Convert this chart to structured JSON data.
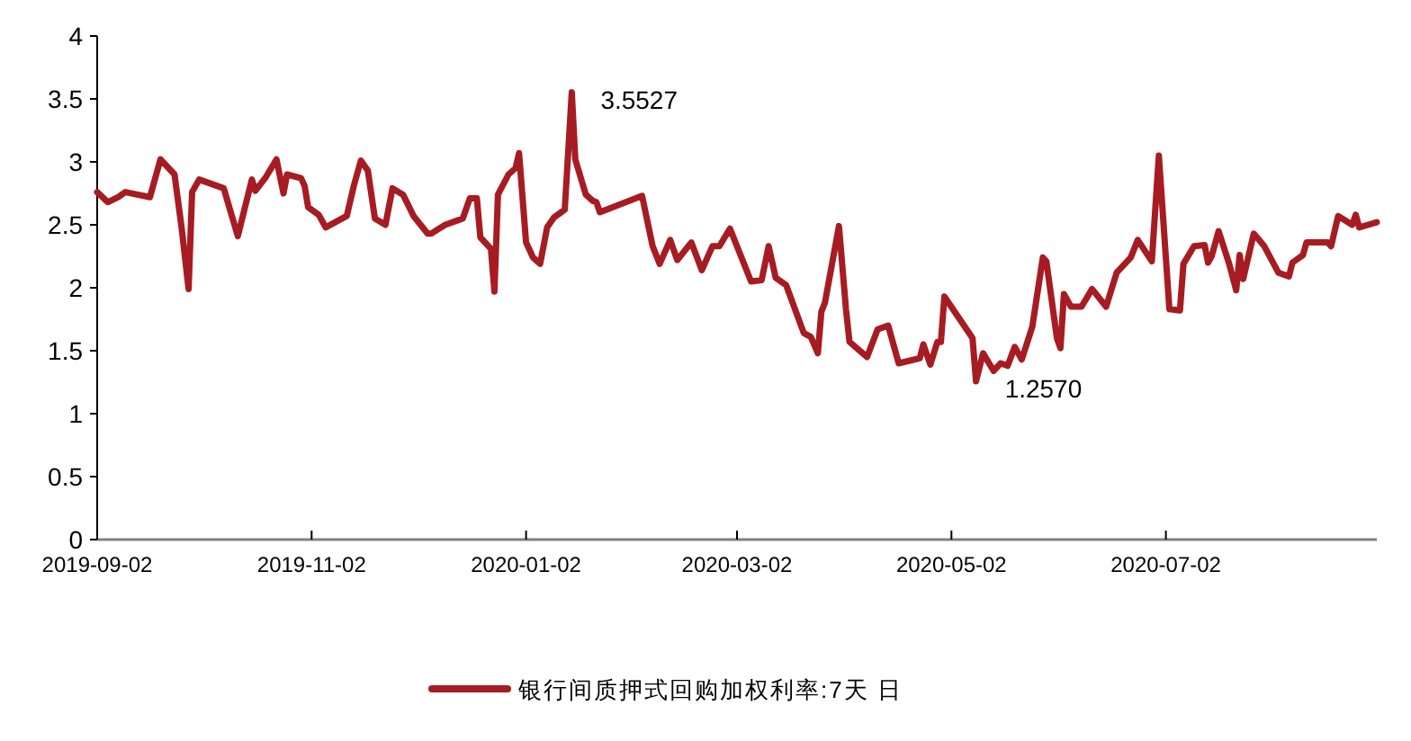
{
  "chart_data": {
    "type": "line",
    "xlim": [
      "2019-09-02",
      "2020-08-31"
    ],
    "xticks": [
      "2019-09-02",
      "2019-11-02",
      "2020-01-02",
      "2020-03-02",
      "2020-05-02",
      "2020-07-02"
    ],
    "ylim": [
      0,
      4
    ],
    "yticks": [
      0,
      0.5,
      1,
      1.5,
      2,
      2.5,
      3,
      3.5,
      4
    ],
    "legend": "bottom",
    "annotations": [
      {
        "text": "3.5527",
        "x": "2020-01-15",
        "y": 3.5527
      },
      {
        "text": "1.2570",
        "x": "2020-05-09",
        "y": 1.257
      }
    ],
    "series": [
      {
        "name": "银行间质押式回购加权利率:7天 日",
        "color": "#a61c22",
        "x": [
          "2019-09-02",
          "2019-09-05",
          "2019-09-08",
          "2019-09-10",
          "2019-09-17",
          "2019-09-20",
          "2019-09-24",
          "2019-09-26",
          "2019-09-28",
          "2019-09-29",
          "2019-10-01",
          "2019-10-08",
          "2019-10-12",
          "2019-10-16",
          "2019-10-17",
          "2019-10-20",
          "2019-10-23",
          "2019-10-25",
          "2019-10-26",
          "2019-10-30",
          "2019-10-31",
          "2019-11-01",
          "2019-11-04",
          "2019-11-06",
          "2019-11-12",
          "2019-11-14",
          "2019-11-16",
          "2019-11-18",
          "2019-11-20",
          "2019-11-23",
          "2019-11-25",
          "2019-11-28",
          "2019-12-01",
          "2019-12-05",
          "2019-12-06",
          "2019-12-10",
          "2019-12-15",
          "2019-12-17",
          "2019-12-19",
          "2019-12-20",
          "2019-12-23",
          "2019-12-24",
          "2019-12-25",
          "2019-12-28",
          "2019-12-30",
          "2019-12-31",
          "2020-01-02",
          "2020-01-04",
          "2020-01-06",
          "2020-01-08",
          "2020-01-10",
          "2020-01-13",
          "2020-01-15",
          "2020-01-16",
          "2020-01-19",
          "2020-01-21",
          "2020-01-22",
          "2020-01-23",
          "2020-02-04",
          "2020-02-07",
          "2020-02-09",
          "2020-02-12",
          "2020-02-14",
          "2020-02-18",
          "2020-02-21",
          "2020-02-24",
          "2020-02-26",
          "2020-02-29",
          "2020-03-06",
          "2020-03-09",
          "2020-03-11",
          "2020-03-13",
          "2020-03-16",
          "2020-03-21",
          "2020-03-23",
          "2020-03-25",
          "2020-03-26",
          "2020-03-27",
          "2020-03-31",
          "2020-04-02",
          "2020-04-03",
          "2020-04-08",
          "2020-04-11",
          "2020-04-14",
          "2020-04-17",
          "2020-04-23",
          "2020-04-24",
          "2020-04-26",
          "2020-04-28",
          "2020-04-29",
          "2020-04-30",
          "2020-05-08",
          "2020-05-09",
          "2020-05-11",
          "2020-05-14",
          "2020-05-16",
          "2020-05-18",
          "2020-05-20",
          "2020-05-22",
          "2020-05-25",
          "2020-05-28",
          "2020-05-29",
          "2020-06-01",
          "2020-06-02",
          "2020-06-03",
          "2020-06-05",
          "2020-06-08",
          "2020-06-11",
          "2020-06-15",
          "2020-06-18",
          "2020-06-22",
          "2020-06-24",
          "2020-06-28",
          "2020-06-30",
          "2020-07-03",
          "2020-07-06",
          "2020-07-07",
          "2020-07-10",
          "2020-07-13",
          "2020-07-14",
          "2020-07-15",
          "2020-07-17",
          "2020-07-20",
          "2020-07-22",
          "2020-07-23",
          "2020-07-24",
          "2020-07-27",
          "2020-07-30",
          "2020-08-03",
          "2020-08-06",
          "2020-08-07",
          "2020-08-10",
          "2020-08-11",
          "2020-08-17",
          "2020-08-18",
          "2020-08-20",
          "2020-08-24",
          "2020-08-25",
          "2020-08-26",
          "2020-08-31"
        ],
        "values": [
          2.76,
          2.68,
          2.72,
          2.76,
          2.72,
          3.02,
          2.9,
          2.48,
          1.99,
          2.76,
          2.86,
          2.79,
          2.41,
          2.86,
          2.77,
          2.88,
          3.02,
          2.75,
          2.9,
          2.87,
          2.81,
          2.64,
          2.58,
          2.48,
          2.57,
          2.81,
          3.01,
          2.93,
          2.55,
          2.5,
          2.79,
          2.74,
          2.57,
          2.43,
          2.43,
          2.5,
          2.55,
          2.71,
          2.71,
          2.4,
          2.31,
          1.97,
          2.74,
          2.9,
          2.95,
          3.07,
          2.36,
          2.24,
          2.19,
          2.48,
          2.56,
          2.62,
          3.5527,
          3.02,
          2.74,
          2.69,
          2.68,
          2.6,
          2.73,
          2.33,
          2.19,
          2.38,
          2.22,
          2.36,
          2.14,
          2.33,
          2.33,
          2.47,
          2.05,
          2.06,
          2.33,
          2.08,
          2.02,
          1.64,
          1.61,
          1.48,
          1.81,
          1.88,
          2.49,
          1.83,
          1.57,
          1.45,
          1.67,
          1.7,
          1.4,
          1.44,
          1.55,
          1.39,
          1.57,
          1.57,
          1.93,
          1.6,
          1.257,
          1.48,
          1.34,
          1.4,
          1.38,
          1.53,
          1.43,
          1.69,
          2.24,
          2.21,
          1.6,
          1.52,
          1.95,
          1.85,
          1.85,
          1.99,
          1.85,
          2.12,
          2.24,
          2.38,
          2.21,
          3.05,
          1.83,
          1.82,
          2.19,
          2.33,
          2.34,
          2.2,
          2.25,
          2.45,
          2.19,
          1.98,
          2.26,
          2.07,
          2.43,
          2.33,
          2.12,
          2.09,
          2.2,
          2.26,
          2.36,
          2.36,
          2.33,
          2.57,
          2.5,
          2.58,
          2.48,
          2.52
        ]
      }
    ]
  }
}
